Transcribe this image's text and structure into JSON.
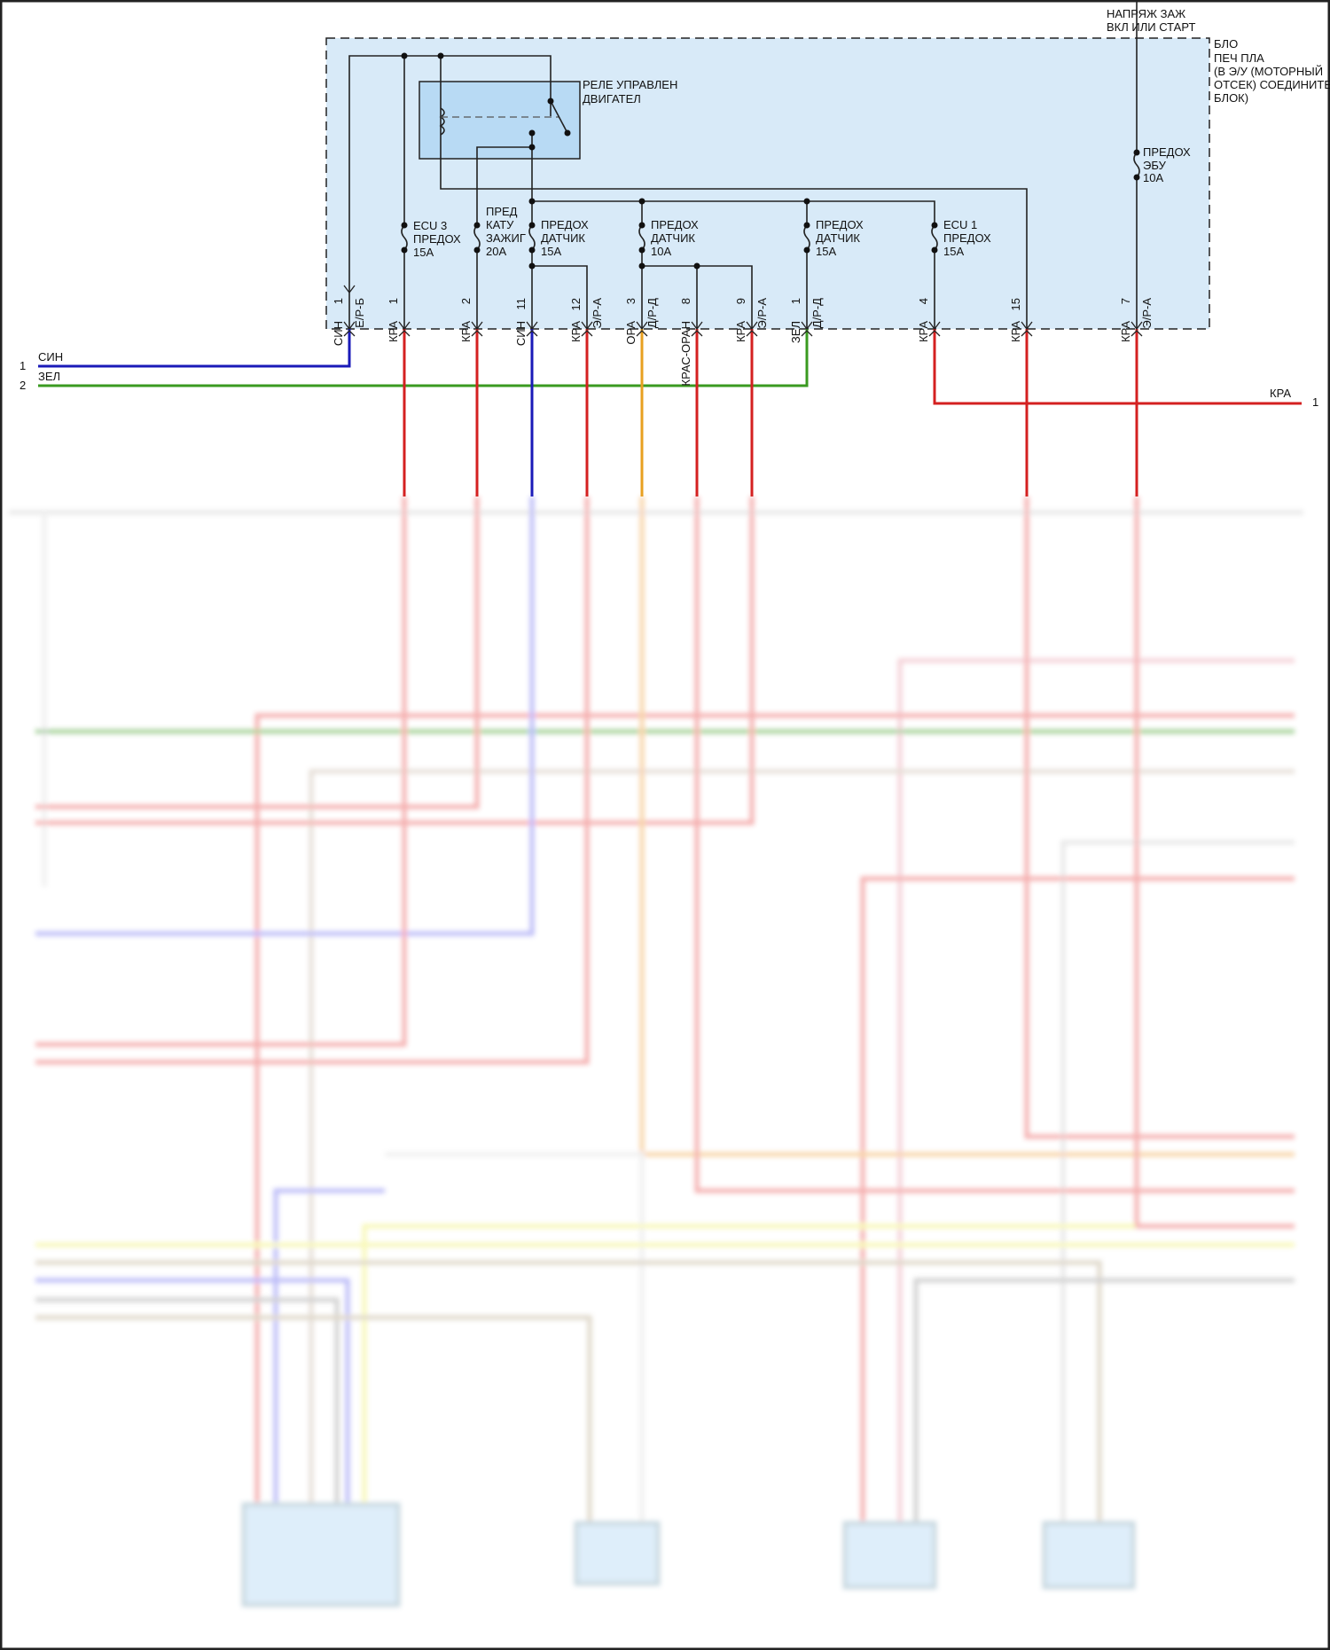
{
  "power_label": [
    "НАПРЯЖ ЗАЖ",
    "ВКЛ ИЛИ СТАРТ"
  ],
  "block_label": [
    "БЛО",
    "ПЕЧ ПЛА",
    "(В Э/У (МОТОРНЫЙ",
    "ОТСЕК) СОЕДИНИТЕ",
    "БЛОК)"
  ],
  "relay_label": [
    "РЕЛЕ УПРАВЛЕН",
    "ДВИГАТЕЛ"
  ],
  "fuses": [
    {
      "lines": [
        "ECU 3",
        "ПРЕДОХ",
        "15A"
      ]
    },
    {
      "lines": [
        "ПРЕД",
        "КАТУ",
        "ЗАЖИГ",
        "20A"
      ]
    },
    {
      "lines": [
        "ПРЕДОХ",
        "ДАТЧИК",
        "15A"
      ]
    },
    {
      "lines": [
        "ПРЕДОХ",
        "ДАТЧИК",
        "10A"
      ]
    },
    {
      "lines": [
        "ПРЕДОХ",
        "ДАТЧИК",
        "15A"
      ]
    },
    {
      "lines": [
        "ECU 1",
        "ПРЕДОХ",
        "15A"
      ]
    },
    {
      "lines": [
        "ПРЕДОХ",
        "ЭБУ",
        "10A"
      ]
    }
  ],
  "pins": [
    {
      "num": "1",
      "wire": "СИН",
      "conn": "Е/Р-Б"
    },
    {
      "num": "1",
      "wire": "КРА",
      "conn": ""
    },
    {
      "num": "2",
      "wire": "КРА",
      "conn": ""
    },
    {
      "num": "11",
      "wire": "СИН",
      "conn": ""
    },
    {
      "num": "12",
      "wire": "КРА",
      "conn": "Э/Р-А"
    },
    {
      "num": "3",
      "wire": "ОРА",
      "conn": "Д/Р-Д"
    },
    {
      "num": "8",
      "wire": "КРАС-ОРАН",
      "conn": ""
    },
    {
      "num": "9",
      "wire": "КРА",
      "conn": "Э/Р-А"
    },
    {
      "num": "1",
      "wire": "ЗЕЛ",
      "conn": "Д/Р-Д"
    },
    {
      "num": "4",
      "wire": "КРА",
      "conn": ""
    },
    {
      "num": "15",
      "wire": "КРА",
      "conn": ""
    },
    {
      "num": "7",
      "wire": "КРА",
      "conn": "Э/Р-А"
    }
  ],
  "left_wires": [
    {
      "num": "1",
      "color_name": "СИН"
    },
    {
      "num": "2",
      "color_name": "ЗЕЛ"
    }
  ],
  "right_wire": {
    "num": "1",
    "color_name": "КРА"
  },
  "colors": {
    "red": "#d42020",
    "blue": "#1a1ab8",
    "green": "#3a9a20",
    "orange": "#e8a020",
    "block_fill": "#d8eaf8",
    "relay_fill": "#b8daf4"
  }
}
